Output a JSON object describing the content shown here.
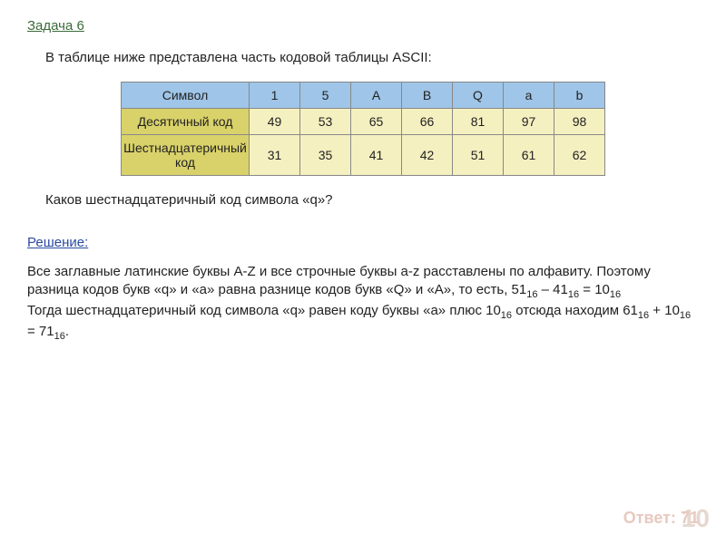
{
  "task_title": "Задача 6",
  "intro": "В таблице ниже представлена часть кодовой таблицы ASCII:",
  "table": {
    "header_label": "Символ",
    "symbols": [
      "1",
      "5",
      "A",
      "B",
      "Q",
      "a",
      "b"
    ],
    "row1_label": "Десятичный код",
    "row1": [
      "49",
      "53",
      "65",
      "66",
      "81",
      "97",
      "98"
    ],
    "row2_label": "Шестнадцатеричный код",
    "row2": [
      "31",
      "35",
      "41",
      "42",
      "51",
      "61",
      "62"
    ],
    "colors": {
      "header_bg": "#9fc5e8",
      "label_bg": "#d9d26a",
      "cell_bg": "#f5f0c0",
      "border": "#888888"
    }
  },
  "question": "Каков шестнадцатеричный код символа «q»?",
  "solution_title": "Решение:",
  "sol": {
    "p1a": "Все заглавные латинские буквы A-Z и все строчные буквы a-z расставлены по алфавиту. Поэтому разница кодов букв «q» и «a» равна разнице кодов букв «Q» и «A», то есть, 51",
    "s16a": "16",
    "p1b": " – 41",
    "s16b": "16",
    "p1c": " = 10",
    "s16c": "16",
    "p2a": "Тогда шестнадцатеричный код символа «q» равен коду буквы «a» плюс 10",
    "s16d": "16",
    "p2b": " отсюда находим 61",
    "s16e": "16",
    "p2c": " + 10",
    "s16f": "16",
    "p2d": " = 71",
    "s16g": "16",
    "p2e": "."
  },
  "answer_label": "Ответ: ",
  "answer_value": "71",
  "page_number": "10"
}
